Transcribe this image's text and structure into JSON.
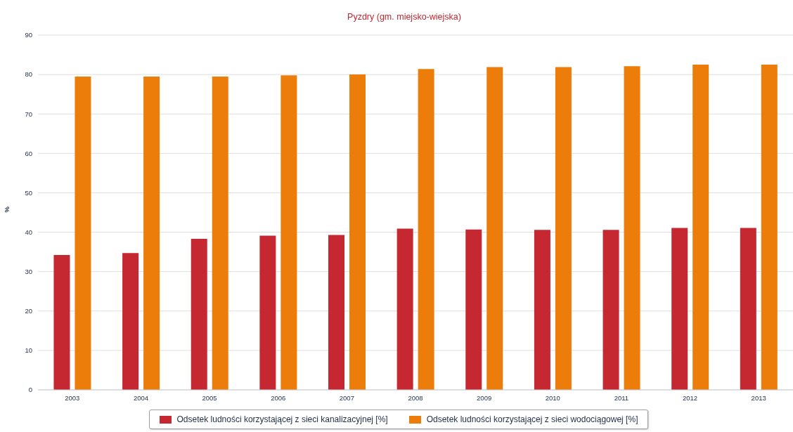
{
  "chart_data": {
    "type": "bar",
    "title": "Pyzdry (gm. miejsko-wiejska)",
    "ylabel": "%",
    "categories": [
      "2003",
      "2004",
      "2005",
      "2006",
      "2007",
      "2008",
      "2009",
      "2010",
      "2011",
      "2012",
      "2013"
    ],
    "series": [
      {
        "name": "Odsetek ludności korzystającej z sieci kanalizacyjnej [%]",
        "color": "#c62832",
        "values": [
          34.2,
          34.7,
          38.3,
          39.1,
          39.3,
          40.9,
          40.7,
          40.6,
          40.6,
          41.1,
          41.1
        ]
      },
      {
        "name": "Odsetek ludności korzystającej z sieci wodociągowej [%]",
        "color": "#ec7d0a",
        "values": [
          79.5,
          79.5,
          79.5,
          79.8,
          80.0,
          81.4,
          81.9,
          81.9,
          82.1,
          82.5,
          82.5
        ]
      }
    ],
    "ylim": [
      0,
      90
    ],
    "yticks": [
      0,
      10,
      20,
      30,
      40,
      50,
      60,
      70,
      80,
      90
    ],
    "grid": "y",
    "legend": "bottom"
  }
}
